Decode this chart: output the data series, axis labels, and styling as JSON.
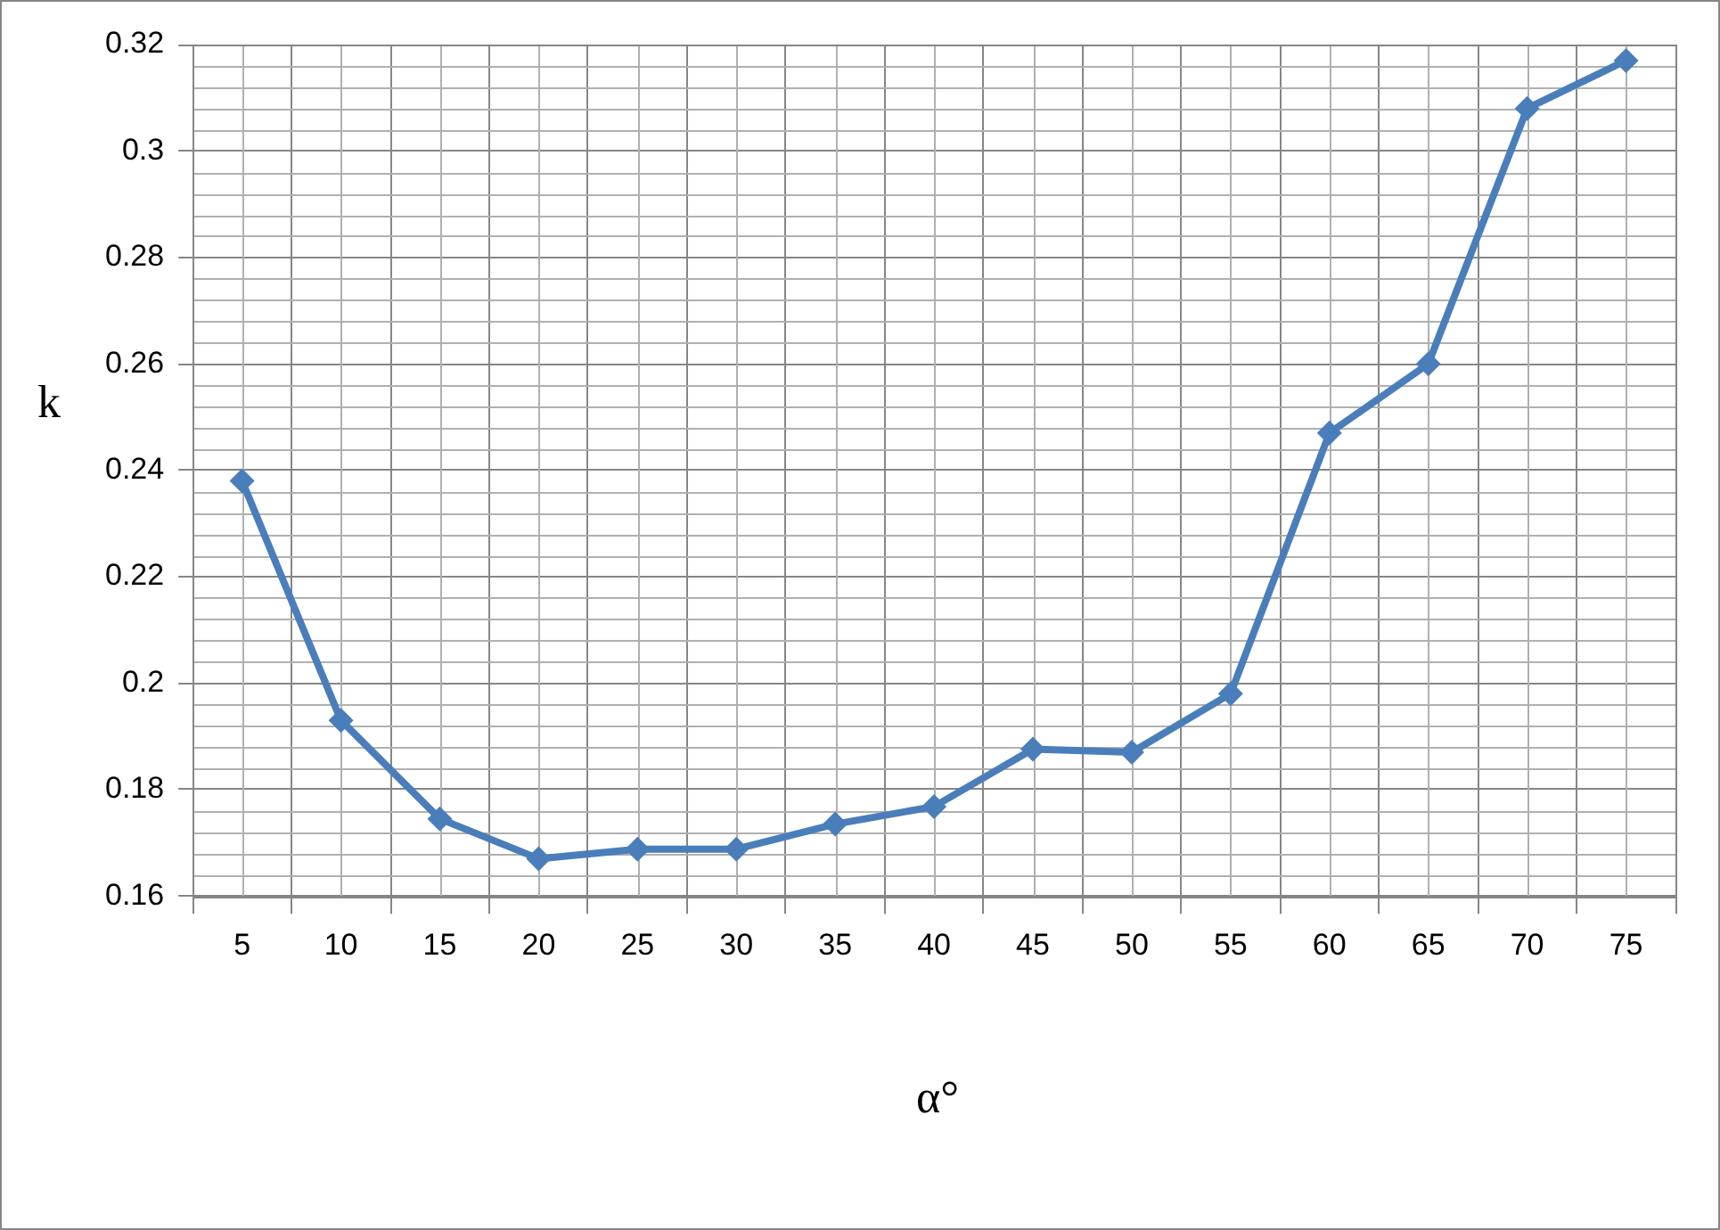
{
  "chart_data": {
    "type": "line",
    "xlabel": "α°",
    "ylabel": "k",
    "categories": [
      "5",
      "10",
      "15",
      "20",
      "25",
      "30",
      "35",
      "40",
      "45",
      "50",
      "55",
      "60",
      "65",
      "70",
      "75"
    ],
    "series": [
      {
        "color": "#4a7ebb",
        "values": [
          0.238,
          0.193,
          0.1745,
          0.167,
          0.1688,
          0.1688,
          0.1735,
          0.1768,
          0.1876,
          0.187,
          0.198,
          0.247,
          0.26,
          0.308,
          0.317
        ]
      }
    ],
    "ylim": [
      0.16,
      0.32
    ],
    "yticks": [
      0.16,
      0.18,
      0.2,
      0.22,
      0.24,
      0.26,
      0.28,
      0.3,
      0.32
    ],
    "grid": true,
    "legend": false,
    "marker": "diamond",
    "line_style": "solid"
  }
}
